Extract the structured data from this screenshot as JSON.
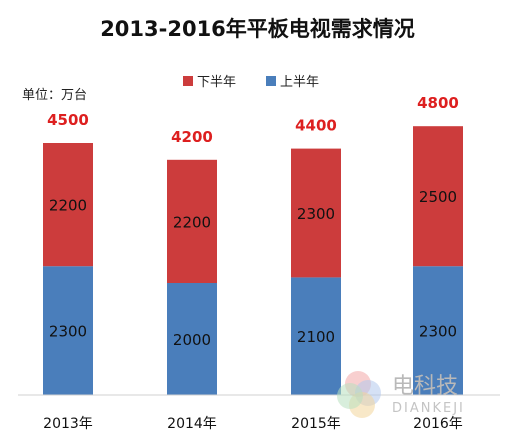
{
  "chart_data": {
    "type": "bar",
    "stacked": true,
    "title": "2013-2016年平板电视需求情况",
    "unit_label": "单位：万台",
    "categories": [
      "2013年",
      "2014年",
      "2015年",
      "2016年"
    ],
    "series": [
      {
        "name": "上半年",
        "values": [
          2300,
          2000,
          2100,
          2300
        ],
        "color": "#4a7ebb"
      },
      {
        "name": "下半年",
        "values": [
          2200,
          2200,
          2300,
          2500
        ],
        "color": "#cc3c3c"
      }
    ],
    "totals": [
      4500,
      4200,
      4400,
      4800
    ],
    "total_label_color": "#dd1f1f",
    "legend_order": [
      "下半年",
      "上半年"
    ],
    "legend_position": "top-center",
    "grid": false,
    "ylim": [
      0,
      5200
    ]
  },
  "watermark": {
    "text": "电科技",
    "subtext": "DIANKEJI",
    "colors": [
      "#f2a8a8",
      "#b3c9ec",
      "#f3d59a",
      "#b8e0c0"
    ]
  }
}
